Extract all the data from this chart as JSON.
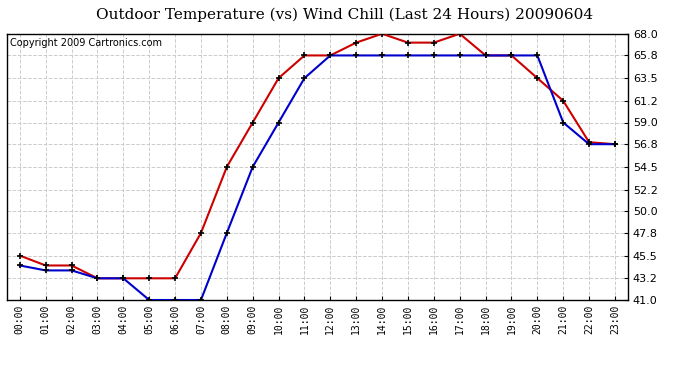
{
  "title": "Outdoor Temperature (vs) Wind Chill (Last 24 Hours) 20090604",
  "copyright": "Copyright 2009 Cartronics.com",
  "hours": [
    "00:00",
    "01:00",
    "02:00",
    "03:00",
    "04:00",
    "05:00",
    "06:00",
    "07:00",
    "08:00",
    "09:00",
    "10:00",
    "11:00",
    "12:00",
    "13:00",
    "14:00",
    "15:00",
    "16:00",
    "17:00",
    "18:00",
    "19:00",
    "20:00",
    "21:00",
    "22:00",
    "23:00"
  ],
  "temp": [
    45.5,
    44.5,
    44.5,
    43.2,
    43.2,
    43.2,
    43.2,
    47.8,
    54.5,
    59.0,
    63.5,
    65.8,
    65.8,
    67.1,
    68.0,
    67.1,
    67.1,
    68.0,
    65.8,
    65.8,
    63.5,
    61.2,
    57.0,
    56.8
  ],
  "wind_chill": [
    44.5,
    44.0,
    44.0,
    43.2,
    43.2,
    41.0,
    41.0,
    41.0,
    47.8,
    54.5,
    59.0,
    63.5,
    65.8,
    65.8,
    65.8,
    65.8,
    65.8,
    65.8,
    65.8,
    65.8,
    65.8,
    59.0,
    56.8,
    56.8
  ],
  "temp_color": "#cc0000",
  "wind_chill_color": "#0000cc",
  "ylim_min": 41.0,
  "ylim_max": 68.0,
  "yticks": [
    41.0,
    43.2,
    45.5,
    47.8,
    50.0,
    52.2,
    54.5,
    56.8,
    59.0,
    61.2,
    63.5,
    65.8,
    68.0
  ],
  "bg_color": "#ffffff",
  "plot_bg_color": "#ffffff",
  "grid_color": "#cccccc",
  "title_fontsize": 11,
  "copyright_fontsize": 7,
  "tick_fontsize": 8
}
